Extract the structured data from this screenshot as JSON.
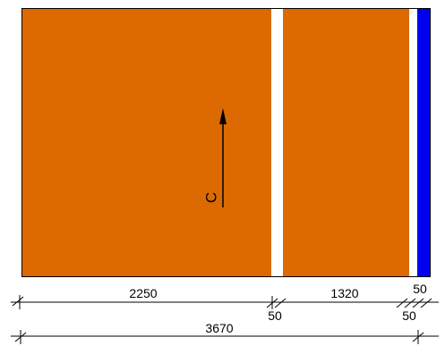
{
  "colors": {
    "panel_fill": "#dc6a00",
    "blue_edge": "#0000ee",
    "outline": "#000000",
    "gap": "#ffffff"
  },
  "section_marker": {
    "letter": "C"
  },
  "dimensions": {
    "panel_a_width": "2250",
    "gap_a_width": "50",
    "panel_b_width": "1320",
    "gap_b_width": "50",
    "edge_width": "50",
    "total_width": "3670"
  }
}
